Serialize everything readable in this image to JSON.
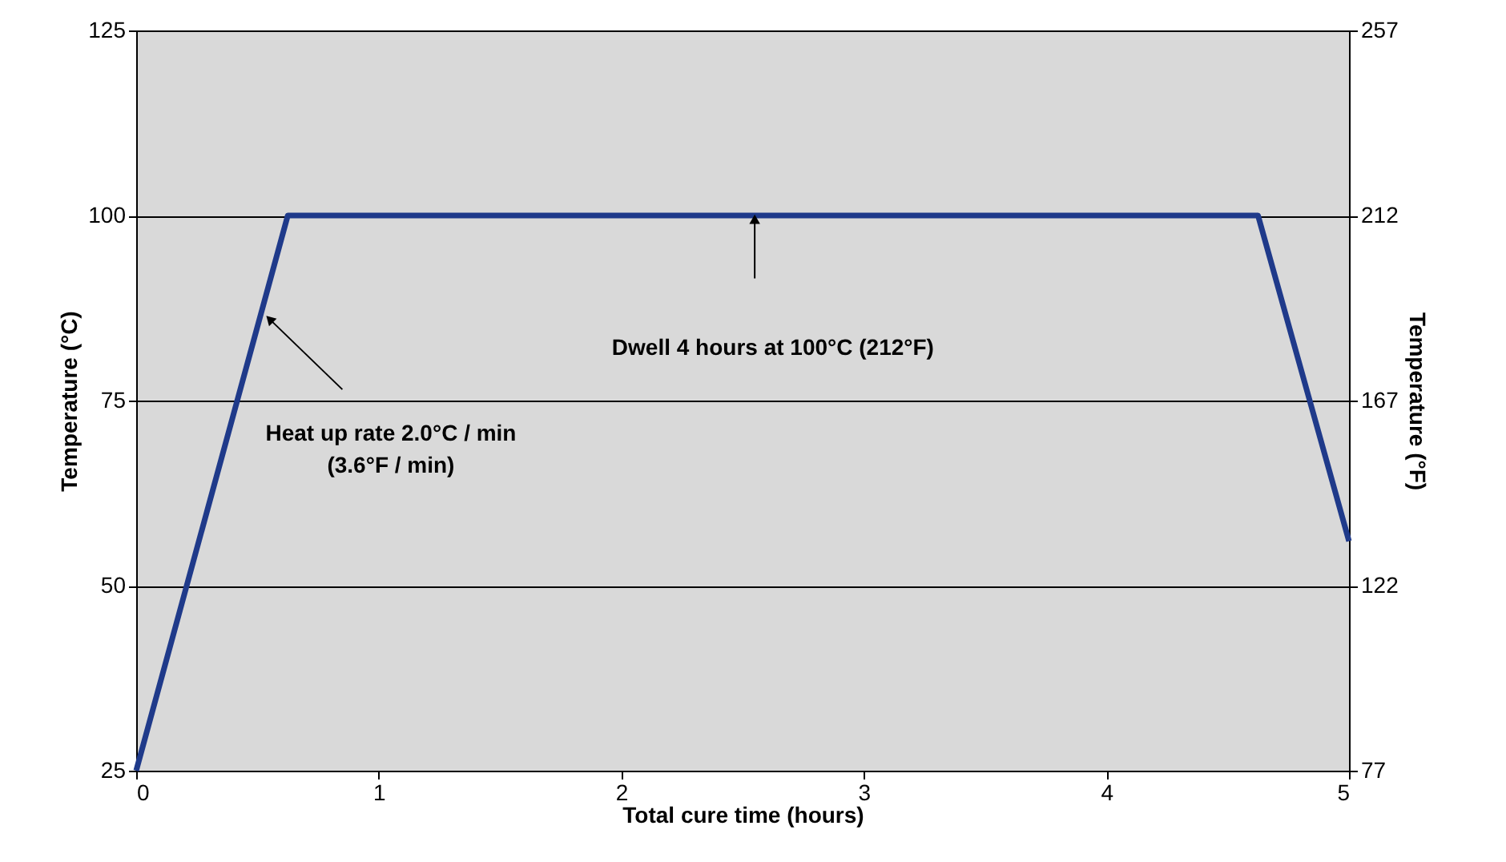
{
  "chart_data": {
    "type": "line",
    "xlabel": "Total cure time (hours)",
    "ylabel": "Temperature (°C)",
    "y2label": "Temperature (°F)",
    "x": [
      0,
      0.625,
      4.625,
      5
    ],
    "series": [
      {
        "color": "#1f3a8a",
        "values": [
          25,
          100,
          100,
          56
        ]
      }
    ],
    "xlim": [
      0,
      5
    ],
    "xticks": [
      0,
      1,
      2,
      3,
      4,
      5
    ],
    "ylim": [
      25,
      125
    ],
    "yticks": [
      25,
      50,
      75,
      100,
      125
    ],
    "y2lim": [
      77,
      257
    ],
    "y2ticks": [
      77,
      122,
      167,
      212,
      257
    ],
    "grid": "y",
    "marker": "none",
    "line_style": "solid",
    "annotations": [
      "Dwell 4 hours at 100°C (212°F)",
      "Heat up rate 2.0°C / min\n(3.6°F / min)"
    ]
  }
}
